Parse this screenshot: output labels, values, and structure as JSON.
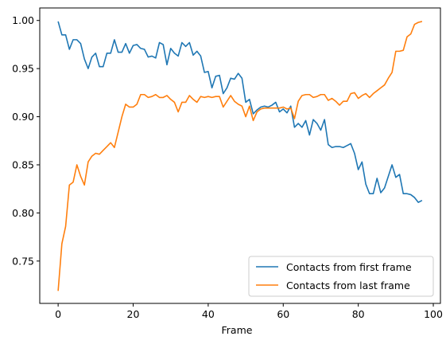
{
  "chart_data": {
    "type": "line",
    "title": "",
    "xlabel": "Frame",
    "ylabel": "",
    "xlim": [
      -4.9,
      101.9
    ],
    "ylim": [
      0.706,
      1.013
    ],
    "xticks": [
      0,
      20,
      40,
      60,
      80,
      100
    ],
    "yticks": [
      0.75,
      0.8,
      0.85,
      0.9,
      0.95,
      1.0
    ],
    "xtick_labels": [
      "0",
      "20",
      "40",
      "60",
      "80",
      "100"
    ],
    "ytick_labels": [
      "0.75",
      "0.80",
      "0.85",
      "0.90",
      "0.95",
      "1.00"
    ],
    "grid": false,
    "legend_position": "lower-right",
    "series": [
      {
        "name": "Contacts from first frame",
        "color": "#1f77b4",
        "values": [
          0.999,
          0.985,
          0.985,
          0.97,
          0.98,
          0.98,
          0.976,
          0.96,
          0.95,
          0.962,
          0.966,
          0.952,
          0.952,
          0.966,
          0.966,
          0.98,
          0.967,
          0.967,
          0.976,
          0.966,
          0.974,
          0.975,
          0.971,
          0.97,
          0.962,
          0.963,
          0.961,
          0.977,
          0.975,
          0.954,
          0.971,
          0.966,
          0.963,
          0.977,
          0.973,
          0.977,
          0.964,
          0.968,
          0.963,
          0.946,
          0.947,
          0.93,
          0.942,
          0.943,
          0.924,
          0.93,
          0.94,
          0.939,
          0.945,
          0.94,
          0.915,
          0.918,
          0.903,
          0.907,
          0.91,
          0.911,
          0.91,
          0.912,
          0.915,
          0.905,
          0.908,
          0.904,
          0.911,
          0.889,
          0.893,
          0.889,
          0.896,
          0.881,
          0.897,
          0.893,
          0.886,
          0.897,
          0.871,
          0.868,
          0.869,
          0.869,
          0.868,
          0.87,
          0.872,
          0.862,
          0.845,
          0.853,
          0.83,
          0.82,
          0.82,
          0.836,
          0.821,
          0.826,
          0.838,
          0.85,
          0.837,
          0.84,
          0.82,
          0.82,
          0.819,
          0.816,
          0.811,
          0.813
        ]
      },
      {
        "name": "Contacts from last frame",
        "color": "#ff7f0e",
        "values": [
          0.719,
          0.768,
          0.786,
          0.829,
          0.832,
          0.85,
          0.838,
          0.829,
          0.853,
          0.859,
          0.862,
          0.861,
          0.865,
          0.869,
          0.873,
          0.868,
          0.884,
          0.9,
          0.913,
          0.91,
          0.91,
          0.913,
          0.923,
          0.923,
          0.92,
          0.921,
          0.923,
          0.92,
          0.92,
          0.922,
          0.918,
          0.915,
          0.905,
          0.915,
          0.915,
          0.922,
          0.918,
          0.915,
          0.921,
          0.92,
          0.921,
          0.92,
          0.921,
          0.921,
          0.91,
          0.916,
          0.922,
          0.916,
          0.913,
          0.911,
          0.9,
          0.911,
          0.896,
          0.905,
          0.908,
          0.909,
          0.909,
          0.909,
          0.909,
          0.909,
          0.91,
          0.908,
          0.909,
          0.898,
          0.916,
          0.922,
          0.923,
          0.923,
          0.92,
          0.921,
          0.923,
          0.923,
          0.917,
          0.919,
          0.916,
          0.912,
          0.916,
          0.916,
          0.924,
          0.925,
          0.919,
          0.922,
          0.924,
          0.92,
          0.924,
          0.927,
          0.93,
          0.933,
          0.94,
          0.946,
          0.968,
          0.968,
          0.969,
          0.983,
          0.986,
          0.996,
          0.998,
          0.999
        ]
      }
    ]
  }
}
